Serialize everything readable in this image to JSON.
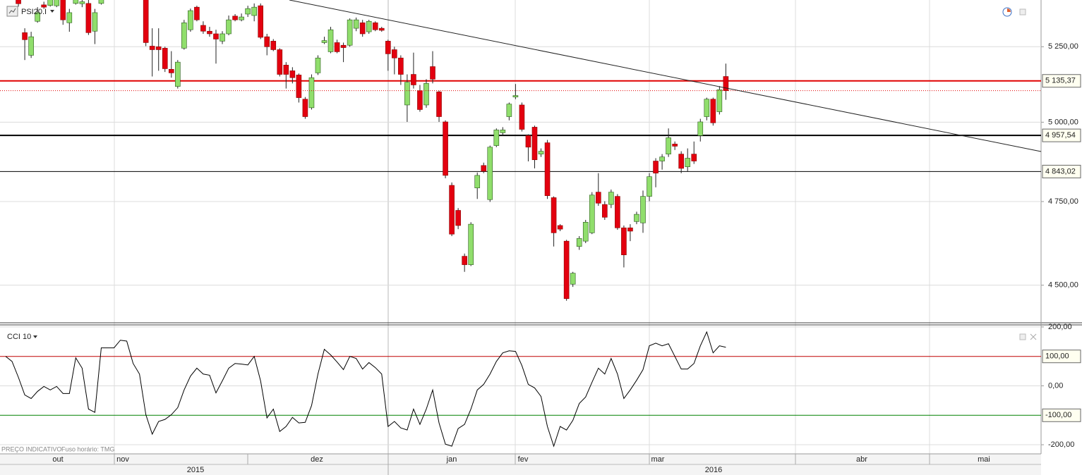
{
  "chart_data": [
    {
      "type": "candlestick",
      "title": "PSI20.I",
      "log_scale": true,
      "grid": true,
      "up_color": "#90de6c",
      "down_color": "#e3000f",
      "ylim": [
        4394,
        5411
      ],
      "yticks": [
        {
          "value": 5250,
          "label": "5 250,00"
        },
        {
          "value": 5000,
          "label": "5 000,00"
        },
        {
          "value": 4750,
          "label": "4 750,00"
        },
        {
          "value": 4500,
          "label": "4 500,00"
        }
      ],
      "hlines": [
        {
          "value": 5135.37,
          "label": "5 135,37",
          "color": "#e00000",
          "thick": true
        },
        {
          "value": 4957.54,
          "label": "4 957,54",
          "color": "#000000",
          "thick": true
        },
        {
          "value": 4843.02,
          "label": "4 843,02",
          "color": "#000000",
          "thick": false
        }
      ],
      "categories": [
        null,
        null,
        null,
        null,
        null,
        null,
        null,
        null,
        null,
        null,
        null,
        null,
        null,
        null,
        null,
        null,
        null,
        null,
        null,
        null,
        null,
        null,
        null,
        null,
        null,
        null,
        null,
        null,
        null,
        null,
        null,
        null,
        null,
        null,
        null,
        null,
        null,
        null,
        null,
        null,
        null,
        null,
        null,
        null,
        null,
        null,
        null,
        null,
        null,
        null,
        null,
        null,
        null,
        null,
        null,
        null,
        null,
        null,
        null,
        null,
        null,
        null,
        null,
        null,
        null,
        null,
        null,
        null,
        null,
        null,
        null,
        null,
        null,
        null,
        null,
        null,
        null,
        null,
        null,
        null,
        null,
        null,
        null,
        null,
        null,
        null,
        null,
        null,
        null,
        null,
        null,
        null,
        null,
        null,
        null,
        null,
        null,
        null,
        null,
        null,
        null,
        null,
        null,
        null,
        null,
        null,
        null,
        null,
        null,
        null,
        null,
        null,
        null,
        null
      ],
      "open": [
        null,
        null,
        5415,
        5298,
        5221,
        5337,
        5394,
        5392,
        5391,
        5430,
        5332,
        5399,
        5398,
        5399,
        5303,
        5399,
        null,
        null,
        null,
        null,
        null,
        null,
        5425,
        5252,
        5250,
        5245,
        5174,
        5117,
        5245,
        5308,
        5386,
        5323,
        5303,
        5294,
        5269,
        5294,
        5355,
        5342,
        5362,
        5357,
        5391,
        5284,
        5269,
        5240,
        5188,
        5169,
        5155,
        5075,
        5047,
        5162,
        5264,
        5233,
        5264,
        5255,
        5255,
        5313,
        5332,
        5301,
        5332,
        5313,
        5269,
        5240,
        5212,
        5056,
        5157,
        5103,
        5056,
        5183,
        5099,
        5001,
        4800,
        4723,
        4585,
        4560,
        4792,
        4862,
        4756,
        4925,
        4966,
        5018,
        5082,
        5056,
        4957,
        4984,
        4898,
        4934,
        4762,
        4677,
        4630,
        4503,
        4614,
        4630,
        4655,
        4779,
        4741,
        4741,
        4766,
        4670,
        4670,
        4689,
        4685,
        4766,
        4876,
        4876,
        4898,
        4930,
        4898,
        4858,
        4898,
        4957,
        5018,
        5075,
        5034,
        5150
      ],
      "high": [
        null,
        null,
        5430,
        5313,
        5301,
        5386,
        5405,
        5430,
        5440,
        5445,
        5380,
        5435,
        5420,
        5420,
        5380,
        5430,
        null,
        null,
        null,
        null,
        null,
        null,
        5440,
        5313,
        5313,
        5250,
        5235,
        5205,
        5342,
        5381,
        5391,
        5337,
        5318,
        5308,
        5303,
        5357,
        5362,
        5364,
        5391,
        5399,
        5399,
        5294,
        5276,
        5245,
        5198,
        5181,
        5160,
        5082,
        5157,
        5221,
        5284,
        5318,
        5274,
        5264,
        5347,
        5350,
        5342,
        5342,
        5337,
        5318,
        5274,
        5250,
        5221,
        5157,
        5230,
        5122,
        5141,
        5235,
        5103,
        5006,
        4809,
        4730,
        4593,
        4687,
        4840,
        4871,
        4925,
        4980,
        4984,
        5064,
        5125,
        5064,
        4961,
        4989,
        4916,
        4943,
        4766,
        4681,
        4634,
        4539,
        4645,
        4694,
        4779,
        4838,
        4751,
        4787,
        4773,
        4677,
        4681,
        4719,
        4784,
        4838,
        4885,
        4898,
        4980,
        4938,
        4907,
        4916,
        4938,
        5011,
        5080,
        5080,
        5118,
        5193
      ],
      "low": [
        null,
        null,
        5388,
        5205,
        5212,
        5332,
        5380,
        5388,
        5386,
        5325,
        5301,
        5395,
        5386,
        5290,
        5259,
        5395,
        null,
        null,
        null,
        null,
        null,
        null,
        5252,
        5150,
        5169,
        5165,
        5146,
        5110,
        5240,
        5301,
        5337,
        5294,
        5284,
        5193,
        5259,
        5289,
        5337,
        5337,
        5352,
        5337,
        5276,
        5221,
        5235,
        5150,
        5110,
        5127,
        5064,
        5011,
        5041,
        5155,
        5259,
        5228,
        5228,
        5198,
        5250,
        5303,
        5284,
        5294,
        5303,
        5301,
        5169,
        5157,
        5122,
        5001,
        5110,
        5034,
        5047,
        5127,
        5001,
        4822,
        4645,
        4666,
        4539,
        4556,
        4758,
        4838,
        4749,
        4920,
        4957,
        5006,
        5075,
        4970,
        4875,
        4853,
        4889,
        4758,
        4614,
        4660,
        4455,
        4495,
        4604,
        4624,
        4651,
        4737,
        4694,
        4730,
        4664,
        4552,
        4630,
        4681,
        4655,
        4751,
        4794,
        4849,
        4889,
        4911,
        4838,
        4844,
        4867,
        4938,
        5006,
        4989,
        5025,
        5073
      ],
      "close": [
        null,
        null,
        5398,
        5274,
        5284,
        5367,
        5386,
        5420,
        5425,
        5342,
        5367,
        5425,
        5405,
        5298,
        5367,
        5420,
        null,
        null,
        null,
        null,
        null,
        null,
        5264,
        5240,
        5240,
        5176,
        5162,
        5198,
        5332,
        5374,
        5342,
        5303,
        5294,
        5276,
        5294,
        5342,
        5342,
        5352,
        5381,
        5386,
        5282,
        5250,
        5240,
        5157,
        5157,
        5146,
        5080,
        5018,
        5146,
        5212,
        5271,
        5308,
        5233,
        5247,
        5342,
        5342,
        5294,
        5337,
        5308,
        5306,
        5226,
        5212,
        5157,
        5131,
        5122,
        5041,
        5127,
        5141,
        5018,
        4831,
        4651,
        4677,
        4560,
        4681,
        4831,
        4844,
        4920,
        4975,
        4975,
        5059,
        5087,
        4977,
        4920,
        4880,
        4907,
        4768,
        4655,
        4666,
        4461,
        4535,
        4638,
        4687,
        4770,
        4745,
        4702,
        4779,
        4670,
        4589,
        4660,
        4711,
        4766,
        4827,
        4838,
        4889,
        4950,
        4923,
        4853,
        4885,
        4876,
        5001,
        5075,
        4998,
        5106,
        5103
      ]
    },
    {
      "type": "line",
      "title": "CCI 10",
      "color": "#000000",
      "grid": true,
      "ylim": [
        -231,
        207
      ],
      "yticks": [
        {
          "value": 200,
          "label": "200,00"
        },
        {
          "value": 0,
          "label": "0,00"
        },
        {
          "value": -200,
          "label": "-200,00"
        }
      ],
      "hlines": [
        {
          "value": 100,
          "label": "100,00",
          "color": "#c00000",
          "thick": false
        },
        {
          "value": -100,
          "label": "-100,00",
          "color": "#008000",
          "thick": false
        }
      ],
      "values": [
        100,
        83,
        29,
        -31,
        -43,
        -19,
        -2,
        -14,
        -2,
        -26,
        -26,
        95,
        60,
        -79,
        -90,
        129,
        129,
        129,
        155,
        152,
        76,
        40,
        -98,
        -164,
        -121,
        -114,
        -98,
        -74,
        -14,
        33,
        60,
        40,
        36,
        -24,
        17,
        60,
        76,
        74,
        71,
        100,
        17,
        -109,
        -79,
        -155,
        -138,
        -107,
        -126,
        -124,
        -67,
        40,
        124,
        105,
        81,
        55,
        100,
        93,
        57,
        79,
        62,
        40,
        -138,
        -121,
        -143,
        -150,
        -79,
        -131,
        -79,
        -14,
        -126,
        -198,
        -205,
        -145,
        -131,
        -79,
        -14,
        5,
        40,
        83,
        112,
        119,
        117,
        69,
        5,
        -7,
        -36,
        -138,
        -205,
        -138,
        -150,
        -117,
        -60,
        -38,
        12,
        60,
        40,
        93,
        40,
        -43,
        -14,
        19,
        55,
        136,
        145,
        136,
        143,
        100,
        57,
        57,
        76,
        136,
        183,
        112,
        136,
        131
      ]
    }
  ],
  "x_axis": {
    "months": [
      "out",
      "nov",
      "dez",
      "jan",
      "fev",
      "mar",
      "abr",
      "mai"
    ],
    "years": [
      "2015",
      "2016"
    ]
  },
  "footer": [
    "PREÇO INDICATIVO",
    "Fuso horário: TMG"
  ]
}
